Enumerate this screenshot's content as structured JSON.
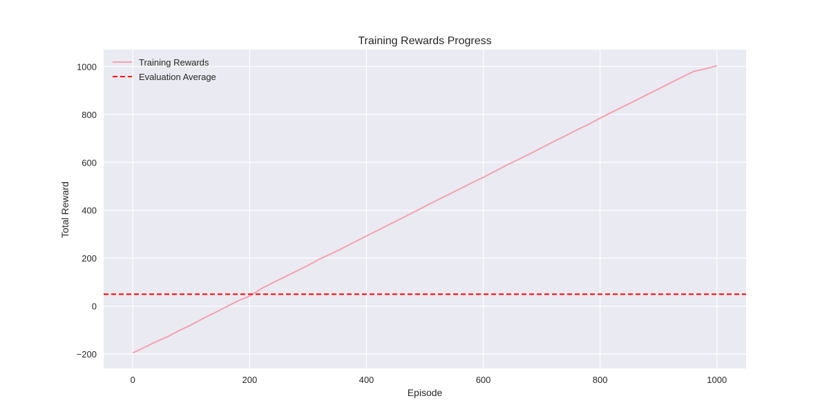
{
  "chart_data": {
    "type": "line",
    "title": "Training Rewards Progress",
    "xlabel": "Episode",
    "ylabel": "Total Reward",
    "xlim": [
      -50,
      1050
    ],
    "ylim": [
      -260,
      1070
    ],
    "xticks": [
      0,
      200,
      400,
      600,
      800,
      1000
    ],
    "yticks": [
      -200,
      0,
      200,
      400,
      600,
      800,
      1000
    ],
    "grid": true,
    "legend_position": "upper-left",
    "series": [
      {
        "name": "Training Rewards",
        "style": "solid",
        "color": "#f4a0b0",
        "x": [
          0,
          20,
          40,
          60,
          80,
          100,
          120,
          140,
          160,
          180,
          200,
          220,
          240,
          260,
          280,
          300,
          320,
          340,
          360,
          380,
          400,
          420,
          440,
          460,
          480,
          500,
          520,
          540,
          560,
          580,
          600,
          620,
          640,
          660,
          680,
          700,
          720,
          740,
          760,
          780,
          800,
          820,
          840,
          860,
          880,
          900,
          920,
          940,
          960,
          980,
          1000
        ],
        "y": [
          -195,
          -172,
          -148,
          -127,
          -101,
          -78,
          -52,
          -28,
          -3,
          22,
          42,
          73,
          98,
          122,
          146,
          170,
          197,
          219,
          243,
          268,
          293,
          317,
          342,
          366,
          391,
          416,
          441,
          465,
          489,
          514,
          537,
          563,
          588,
          612,
          636,
          661,
          686,
          710,
          735,
          758,
          784,
          809,
          833,
          857,
          882,
          906,
          931,
          955,
          979,
          990,
          1003
        ]
      },
      {
        "name": "Evaluation Average",
        "style": "dashed",
        "color": "#ff0000",
        "hline": 50
      }
    ]
  }
}
